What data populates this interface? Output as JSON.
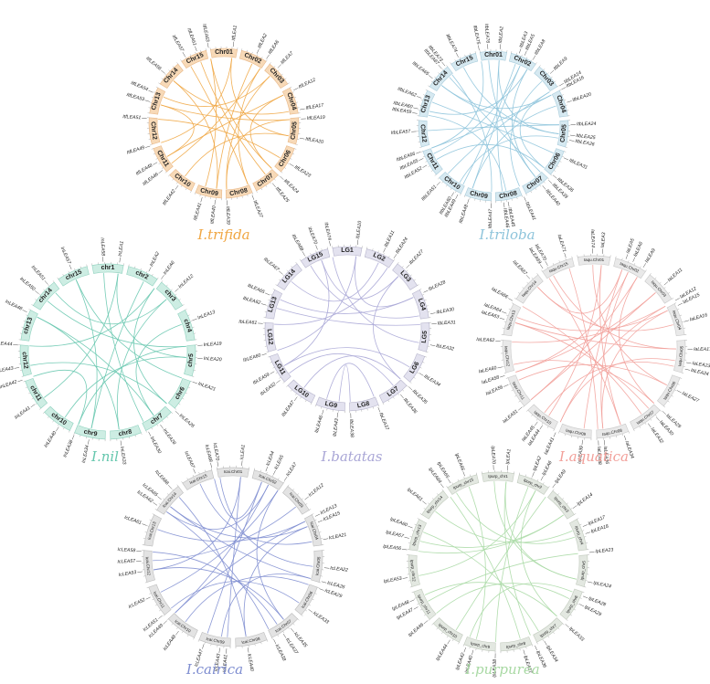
{
  "panels": [
    {
      "id": "trifida",
      "title": "I.trifida",
      "color": "#F0A642",
      "band_fill": "#F7D9B7",
      "band_stroke": "#E9B98A",
      "small_labels": false,
      "chromosomes": [
        "Chr01",
        "Chr02",
        "Chr03",
        "Chr04",
        "Chr05",
        "Chr06",
        "Chr07",
        "Chr08",
        "Chr09",
        "Chr10",
        "Chr11",
        "Chr12",
        "Chr13",
        "Chr14",
        "Chr15"
      ],
      "genes": [
        "ItfLEA1",
        "ItfLEA2",
        "ItfLEA6",
        "ItfLEA7",
        "ItfLEA12",
        "ItfLEA17",
        "ItfLEA19",
        "ItfLEA20",
        "ItfLEA23",
        "ItfLEA24",
        "ItfLEA25",
        "ItfLEA27",
        "ItfLEA39",
        "ItfLEA40",
        "ItfLEA41",
        "ItfLEA42",
        "ItfLEA46",
        "ItfLEA48",
        "ItfLEA49",
        "ItfLEA51",
        "ItfLEA53",
        "ItfLEA54",
        "ItfLEA56",
        "ItfLEA57",
        "ItfLEA61",
        "ItfLEA63"
      ],
      "links": [
        [
          0,
          18
        ],
        [
          1,
          13
        ],
        [
          2,
          16
        ],
        [
          3,
          21
        ],
        [
          4,
          9
        ],
        [
          5,
          22
        ],
        [
          6,
          12
        ],
        [
          7,
          15
        ],
        [
          8,
          19
        ],
        [
          10,
          24
        ],
        [
          11,
          23
        ],
        [
          14,
          25
        ],
        [
          17,
          20
        ],
        [
          0,
          7
        ],
        [
          3,
          12
        ],
        [
          4,
          17
        ],
        [
          6,
          20
        ],
        [
          9,
          25
        ],
        [
          13,
          22
        ],
        [
          2,
          11
        ]
      ]
    },
    {
      "id": "triloba",
      "title": "I.triloba",
      "color": "#8EC4DB",
      "band_fill": "#D6E9F1",
      "band_stroke": "#A9CCDB",
      "small_labels": false,
      "chromosomes": [
        "Chr01",
        "Chr02",
        "Chr03",
        "Chr04",
        "Chr05",
        "Chr06",
        "Chr07",
        "Chr08",
        "Chr09",
        "Chr10",
        "Chr11",
        "Chr12",
        "Chr13",
        "Chr14",
        "Chr15"
      ],
      "genes": [
        "ItbLEA2",
        "ItbLEA3",
        "ItbLEA5",
        "ItbLEA8",
        "ItbLEA9",
        "ItbLEA14",
        "ItbLEA16",
        "ItbLEA20",
        "ItbLEA24",
        "ItbLEA25",
        "ItbLEA26",
        "ItbLEA31",
        "ItbLEA36",
        "ItbLEA39",
        "ItbLEA40",
        "ItbLEA41",
        "ItbLEA45",
        "ItbLEA46",
        "ItbLEA47",
        "ItbLEA48",
        "ItbLEA49",
        "ItbLEA50",
        "ItbLEA51",
        "ItbLEA52",
        "ItbLEA55",
        "ItbLEA56",
        "ItbLEA57",
        "ItbLEA59",
        "ItbLEA60",
        "ItbLEA62",
        "ItbLEA65",
        "ItbLEA67",
        "ItbLEA73",
        "ItbLEA74",
        "ItbLEA75",
        "ItbLEA76"
      ],
      "links": [
        [
          0,
          17
        ],
        [
          1,
          20
        ],
        [
          2,
          24
        ],
        [
          3,
          28
        ],
        [
          4,
          15
        ],
        [
          5,
          22
        ],
        [
          6,
          30
        ],
        [
          7,
          19
        ],
        [
          8,
          26
        ],
        [
          9,
          33
        ],
        [
          10,
          21
        ],
        [
          11,
          29
        ],
        [
          12,
          23
        ],
        [
          13,
          31
        ],
        [
          14,
          35
        ],
        [
          16,
          27
        ],
        [
          18,
          32
        ],
        [
          25,
          34
        ],
        [
          0,
          9
        ],
        [
          3,
          14
        ],
        [
          5,
          12
        ],
        [
          8,
          30
        ],
        [
          2,
          19
        ],
        [
          6,
          25
        ]
      ]
    },
    {
      "id": "nil",
      "title": "I.nil",
      "color": "#66C7AE",
      "band_fill": "#CDEDE3",
      "band_stroke": "#8FD1BE",
      "small_labels": false,
      "chromosomes": [
        "chr1",
        "chr2",
        "chr3",
        "chr4",
        "chr5",
        "chr6",
        "chr7",
        "chr8",
        "chr9",
        "chr10",
        "chr11",
        "chr12",
        "chr13",
        "chr14",
        "chr15"
      ],
      "genes": [
        "InLEA1",
        "InLEA2",
        "InLEA6",
        "InLEA12",
        "InLEA13",
        "InLEA19",
        "InLEA20",
        "InLEA21",
        "InLEA26",
        "InLEA28",
        "InLEA30",
        "InLEA33",
        "InLEA34",
        "InLEA38",
        "InLEA40",
        "InLEA41",
        "InLEA42",
        "InLEA43",
        "InLEA44",
        "InLEA48",
        "InLEA50",
        "InLEA51",
        "InLEA57",
        "InLEA58"
      ],
      "links": [
        [
          0,
          15
        ],
        [
          1,
          12
        ],
        [
          2,
          18
        ],
        [
          3,
          21
        ],
        [
          4,
          9
        ],
        [
          5,
          20
        ],
        [
          6,
          14
        ],
        [
          7,
          22
        ],
        [
          8,
          17
        ],
        [
          10,
          23
        ],
        [
          11,
          19
        ],
        [
          13,
          16
        ],
        [
          0,
          6
        ],
        [
          3,
          11
        ],
        [
          5,
          13
        ],
        [
          2,
          8
        ],
        [
          9,
          19
        ],
        [
          12,
          22
        ]
      ]
    },
    {
      "id": "batatas",
      "title": "I.batatas",
      "color": "#A9A6D6",
      "band_fill": "#E3E2EF",
      "band_stroke": "#B7B5CC",
      "small_labels": false,
      "chromosomes": [
        "LG1",
        "LG2",
        "LG3",
        "LG4",
        "LG5",
        "LG6",
        "LG7",
        "LG8",
        "LG9",
        "LG10",
        "LG11",
        "LG12",
        "LG13",
        "LG14",
        "LG15"
      ],
      "genes": [
        "IbLEA10",
        "IbLEA11",
        "IbLEA24",
        "IbLEA27",
        "IbLEA28",
        "IbLEA30",
        "IbLEA31",
        "IbLEA32",
        "IbLEA34",
        "IbLEA35",
        "IbLEA36",
        "IbLEA37",
        "IbLEA38",
        "IbLEA43",
        "IbLEA46",
        "IbLEA47",
        "IbLEA52",
        "IbLEA59",
        "IbLEA60",
        "IbLEA61",
        "IbLEA62",
        "IbLEA65",
        "IbLEA67",
        "IbLEA68",
        "IbLEA70",
        "IbLEA74"
      ],
      "links": [
        [
          0,
          18
        ],
        [
          1,
          22
        ],
        [
          2,
          19
        ],
        [
          3,
          24
        ],
        [
          4,
          21
        ],
        [
          5,
          23
        ],
        [
          6,
          20
        ],
        [
          7,
          25
        ],
        [
          8,
          17
        ],
        [
          9,
          15
        ],
        [
          10,
          16
        ],
        [
          11,
          14
        ],
        [
          12,
          13
        ],
        [
          0,
          4
        ],
        [
          3,
          9
        ],
        [
          17,
          24
        ]
      ]
    },
    {
      "id": "aquatica",
      "title": "I.aquatica",
      "color": "#F2A09A",
      "band_fill": "#E9E9E9",
      "band_stroke": "#C9C9C9",
      "small_labels": true,
      "chromosomes": [
        "Iaqu.Chr01",
        "Iaqu.Chr02",
        "Iaqu.Chr03",
        "Iaqu.Chr04",
        "Iaqu.Chr05",
        "Iaqu.Chr06",
        "Iaqu.Chr07",
        "Iaqu.Chr08",
        "Iaqu.Chr09",
        "Iaqu.Chr10",
        "Iaqu.Chr11",
        "Iaqu.Chr12",
        "Iaqu.Chr13",
        "Iaqu.Chr14",
        "Iaqu.Chr15"
      ],
      "genes": [
        "IaLEA3",
        "IaLEA5",
        "IaLEA6",
        "IaLEA9",
        "IaLEA11",
        "IaLEA12",
        "IaLEA15",
        "IaLEA16",
        "IaLEA17",
        "IaLEA23",
        "IaLEA24",
        "IaLEA27",
        "IaLEA29",
        "IaLEA30",
        "IaLEA32",
        "IaLEA34",
        "IaLEA36",
        "IaLEA38",
        "IaLEA39",
        "IaLEA41",
        "IaLEA44",
        "IaLEA45",
        "IaLEA51",
        "IaLEA56",
        "IaLEA58",
        "IaLEA60",
        "IaLEA62",
        "IaLEA63",
        "IaLEA64",
        "IaLEA66",
        "IaLEA67",
        "IaLEA69",
        "IaLEA70",
        "IaLEA71",
        "IaLEA74"
      ],
      "links": [
        [
          0,
          20
        ],
        [
          1,
          18
        ],
        [
          2,
          16
        ],
        [
          3,
          22
        ],
        [
          4,
          24
        ],
        [
          5,
          26
        ],
        [
          6,
          28
        ],
        [
          7,
          30
        ],
        [
          8,
          32
        ],
        [
          9,
          19
        ],
        [
          10,
          21
        ],
        [
          11,
          23
        ],
        [
          12,
          25
        ],
        [
          13,
          27
        ],
        [
          14,
          29
        ],
        [
          15,
          31
        ],
        [
          17,
          33
        ],
        [
          0,
          15
        ],
        [
          3,
          12
        ],
        [
          5,
          19
        ],
        [
          8,
          27
        ],
        [
          11,
          34
        ],
        [
          2,
          24
        ],
        [
          6,
          16
        ],
        [
          1,
          30
        ],
        [
          4,
          22
        ]
      ]
    },
    {
      "id": "cairica",
      "title": "I.cairica",
      "color": "#7E8DD0",
      "band_fill": "#E3E3E3",
      "band_stroke": "#BDBDBD",
      "small_labels": true,
      "chromosomes": [
        "Icai.Chr01",
        "Icai.Chr02",
        "Icai.Chr03",
        "Icai.Chr04",
        "Icai.Chr05",
        "Icai.Chr06",
        "Icai.Chr07",
        "Icai.Chr08",
        "Icai.Chr09",
        "Icai.Chr10",
        "Icai.Chr11",
        "Icai.Chr12",
        "Icai.Chr13",
        "Icai.Chr14",
        "Icai.Chr15"
      ],
      "genes": [
        "IcLEA1",
        "IcLEA4",
        "IcLEA5",
        "IcLEA7",
        "IcLEA12",
        "IcLEA13",
        "IcLEA15",
        "IcLEA21",
        "IcLEA22",
        "IcLEA26",
        "IcLEA29",
        "IcLEA33",
        "IcLEA35",
        "IcLEA37",
        "IcLEA38",
        "IcLEA40",
        "IcLEA41",
        "IcLEA43",
        "IcLEA47",
        "IcLEA48",
        "IcLEA49",
        "IcLEA51",
        "IcLEA52",
        "IcLEA53",
        "IcLEA57",
        "IcLEA58",
        "IcLEA61",
        "IcLEA62",
        "IcLEA65",
        "IcLEA66",
        "IcLEA67",
        "IcLEA68",
        "IcLEA70"
      ],
      "links": [
        [
          0,
          16
        ],
        [
          1,
          18
        ],
        [
          2,
          20
        ],
        [
          3,
          22
        ],
        [
          4,
          24
        ],
        [
          5,
          26
        ],
        [
          6,
          28
        ],
        [
          7,
          30
        ],
        [
          8,
          32
        ],
        [
          9,
          17
        ],
        [
          10,
          19
        ],
        [
          11,
          21
        ],
        [
          12,
          23
        ],
        [
          13,
          25
        ],
        [
          14,
          27
        ],
        [
          15,
          29
        ],
        [
          1,
          31
        ],
        [
          3,
          12
        ],
        [
          6,
          15
        ],
        [
          9,
          28
        ],
        [
          0,
          23
        ],
        [
          5,
          20
        ],
        [
          2,
          27
        ]
      ]
    },
    {
      "id": "purpurea",
      "title": "I.purpurea",
      "color": "#A9D9A4",
      "band_fill": "#E3E8E1",
      "band_stroke": "#C2CBBE",
      "small_labels": true,
      "chromosomes": [
        "Ipurp_chr1",
        "Ipurp_chr2",
        "Ipurp_chr3",
        "Ipurp_chr4",
        "Ipurp_chr5",
        "Ipurp_chr6",
        "Ipurp_chr7",
        "Ipurp_chr8",
        "Ipurp_chr9",
        "Ipurp_chr10",
        "Ipurp_chr11",
        "Ipurp_chr12",
        "Ipurp_chr13",
        "Ipurp_chr14",
        "Ipurp_chr15"
      ],
      "genes": [
        "IpLEA1",
        "IpLEA2",
        "IpLEA6",
        "IpLEA9",
        "IpLEA14",
        "IpLEA17",
        "IpLEA18",
        "IpLEA23",
        "IpLEA24",
        "IpLEA28",
        "IpLEA29",
        "IpLEA33",
        "IpLEA34",
        "IpLEA36",
        "IpLEA37",
        "IpLEA38",
        "IpLEA40",
        "IpLEA42",
        "IpLEA44",
        "IpLEA46",
        "IpLEA47",
        "IpLEA48",
        "IpLEA53",
        "IpLEA56",
        "IpLEA57",
        "IpLEA60",
        "IpLEA61",
        "IpLEA64",
        "IpLEA65",
        "IpLEA66",
        "IpLEA70"
      ],
      "links": [
        [
          0,
          13
        ],
        [
          1,
          15
        ],
        [
          2,
          22
        ],
        [
          3,
          18
        ],
        [
          4,
          24
        ],
        [
          5,
          26
        ],
        [
          6,
          28
        ],
        [
          7,
          20
        ],
        [
          8,
          30
        ],
        [
          9,
          17
        ],
        [
          10,
          19
        ],
        [
          11,
          21
        ],
        [
          12,
          25
        ],
        [
          14,
          27
        ],
        [
          16,
          29
        ],
        [
          0,
          8
        ],
        [
          4,
          23
        ],
        [
          2,
          11
        ]
      ]
    }
  ]
}
